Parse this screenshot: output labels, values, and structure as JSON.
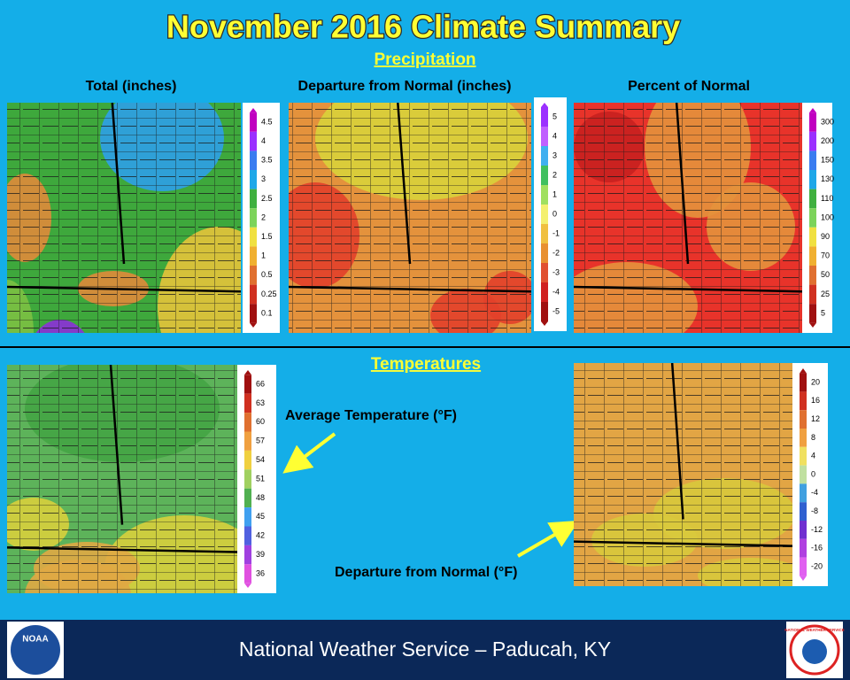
{
  "header": {
    "title": "November 2016 Climate Summary"
  },
  "precipitation": {
    "heading": "Precipitation",
    "panels": [
      {
        "label": "Total (inches)",
        "legend": [
          4.5,
          4,
          3.5,
          3,
          2.5,
          2,
          1.5,
          1,
          0.5,
          0.25,
          0.1
        ]
      },
      {
        "label": "Departure from Normal (inches)",
        "legend": [
          5,
          4,
          3,
          2,
          1,
          0,
          -1,
          -2,
          -3,
          -4,
          -5
        ]
      },
      {
        "label": "Percent of Normal",
        "legend": [
          300,
          200,
          150,
          130,
          110,
          100,
          90,
          70,
          50,
          25,
          5
        ]
      }
    ]
  },
  "temperatures": {
    "heading": "Temperatures",
    "panels": [
      {
        "label": "Average Temperature (°F)",
        "legend": [
          66,
          63,
          60,
          57,
          54,
          51,
          48,
          45,
          42,
          39,
          36
        ]
      },
      {
        "label": "Departure from Normal (°F)",
        "legend": [
          20,
          16,
          12,
          8,
          4,
          0,
          -4,
          -8,
          -12,
          -16,
          -20
        ]
      }
    ]
  },
  "footer": {
    "text": "National Weather Service – Paducah, KY",
    "logos": [
      "NOAA",
      "NATIONAL WEATHER SERVICE"
    ]
  }
}
